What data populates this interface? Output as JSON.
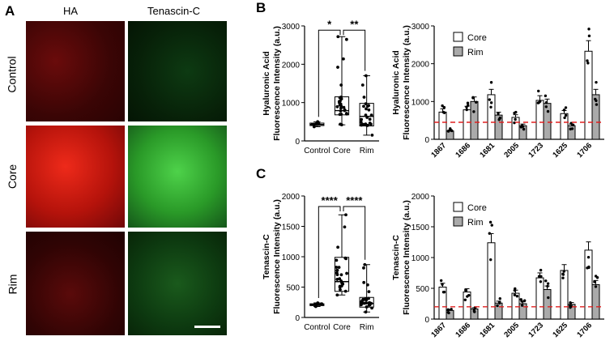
{
  "panel_letters": {
    "a": "A",
    "b": "B",
    "c": "C"
  },
  "images": {
    "column_headers": [
      "HA",
      "Tenascin-C"
    ],
    "row_labels": [
      "Control",
      "Core",
      "Rim"
    ]
  },
  "chart_data": [
    {
      "id": "B-box",
      "type": "box",
      "ylabel": [
        "Hyaluronic Acid",
        "Fluorescence Intensity (a.u.)"
      ],
      "categories": [
        "Control",
        "Core",
        "Rim"
      ],
      "ylim": [
        0,
        3000
      ],
      "yticks": [
        0,
        1000,
        2000,
        3000
      ],
      "boxes": [
        {
          "name": "Control",
          "min": 370,
          "q1": 400,
          "median": 430,
          "q3": 465,
          "max": 500
        },
        {
          "name": "Core",
          "min": 420,
          "q1": 680,
          "median": 790,
          "q3": 1150,
          "max": 2720
        },
        {
          "name": "Rim",
          "min": 150,
          "q1": 390,
          "median": 640,
          "q3": 980,
          "max": 1700
        }
      ],
      "significance": [
        {
          "from": "Control",
          "to": "Core",
          "label": "*"
        },
        {
          "from": "Core",
          "to": "Rim",
          "label": "**"
        }
      ]
    },
    {
      "id": "B-bar",
      "type": "bar",
      "ylabel": [
        "Hyaluronic Acid",
        "Fluorescence Intensity (a.u.)"
      ],
      "categories": [
        "1867",
        "1686",
        "1681",
        "2005",
        "1723",
        "1625",
        "1706"
      ],
      "ylim": [
        0,
        3000
      ],
      "yticks": [
        0,
        1000,
        2000,
        3000
      ],
      "legend": [
        "Core",
        "Rim"
      ],
      "legend_position": "top-left",
      "series": [
        {
          "name": "Core",
          "color": "#ffffff",
          "values": [
            720,
            780,
            1180,
            580,
            1030,
            680,
            2330
          ]
        },
        {
          "name": "Rim",
          "color": "#aaaaaa",
          "values": [
            220,
            1000,
            640,
            360,
            950,
            360,
            1180
          ]
        }
      ],
      "reference_line": {
        "value": 450,
        "color": "#e02020",
        "style": "dashed"
      }
    },
    {
      "id": "C-box",
      "type": "box",
      "ylabel": [
        "Tenascin-C",
        "Fluorescence Intensity (a.u.)"
      ],
      "categories": [
        "Control",
        "Core",
        "Rim"
      ],
      "ylim": [
        0,
        2000
      ],
      "yticks": [
        0,
        500,
        1000,
        1500,
        2000
      ],
      "boxes": [
        {
          "name": "Control",
          "min": 180,
          "q1": 195,
          "median": 210,
          "q3": 225,
          "max": 240
        },
        {
          "name": "Core",
          "min": 370,
          "q1": 430,
          "median": 590,
          "q3": 990,
          "max": 1690
        },
        {
          "name": "Rim",
          "min": 90,
          "q1": 170,
          "median": 230,
          "q3": 330,
          "max": 870
        }
      ],
      "significance": [
        {
          "from": "Control",
          "to": "Core",
          "label": "****"
        },
        {
          "from": "Core",
          "to": "Rim",
          "label": "****"
        }
      ]
    },
    {
      "id": "C-bar",
      "type": "bar",
      "ylabel": [
        "Tenascin-C",
        "Fluorescence Intensity (a.u.)"
      ],
      "categories": [
        "1867",
        "1686",
        "1681",
        "2005",
        "1723",
        "1625",
        "1706"
      ],
      "ylim": [
        0,
        2000
      ],
      "yticks": [
        0,
        500,
        1000,
        1500,
        2000
      ],
      "legend": [
        "Core",
        "Rim"
      ],
      "legend_position": "top-left",
      "series": [
        {
          "name": "Core",
          "color": "#ffffff",
          "values": [
            520,
            440,
            1240,
            420,
            670,
            790,
            1120
          ]
        },
        {
          "name": "Rim",
          "color": "#aaaaaa",
          "values": [
            140,
            165,
            260,
            250,
            480,
            240,
            560
          ]
        }
      ],
      "reference_line": {
        "value": 200,
        "color": "#e02020",
        "style": "dashed"
      }
    }
  ]
}
